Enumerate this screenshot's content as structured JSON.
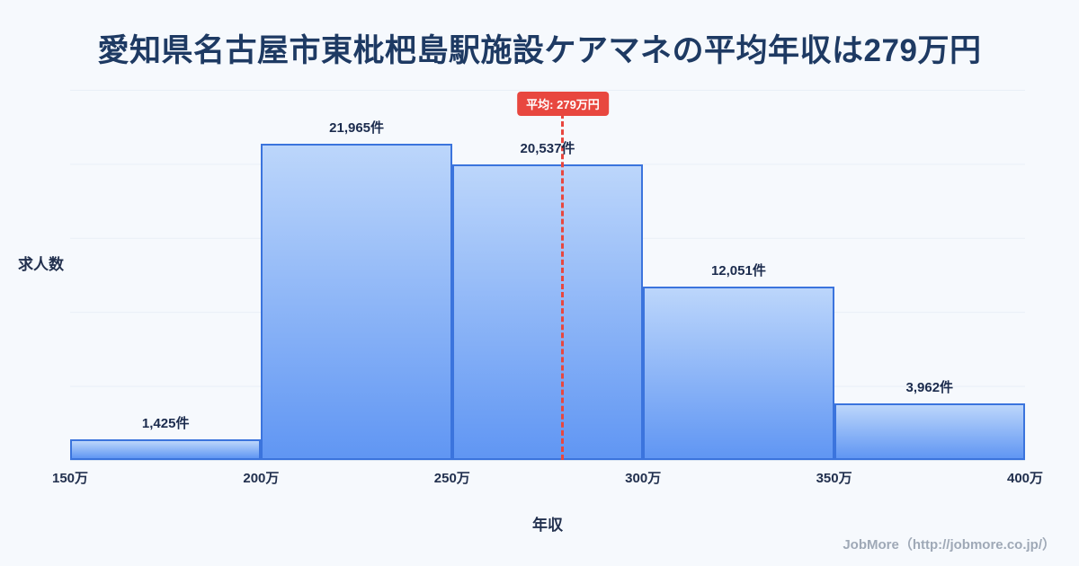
{
  "page": {
    "footer_credit": "JobMore（http://jobmore.co.jp/）"
  },
  "chart_data": {
    "type": "bar",
    "title": "愛知県名古屋市東枇杷島駅施設ケアマネの平均年収は279万円",
    "xlabel": "年収",
    "ylabel": "求人数",
    "x_range": [
      150,
      400
    ],
    "x_tick_labels": [
      "150万",
      "200万",
      "250万",
      "300万",
      "350万",
      "400万"
    ],
    "x_unit": "万円",
    "ylim": [
      0,
      25700
    ],
    "grid": true,
    "legend": "none",
    "bins": [
      {
        "range": [
          150,
          200
        ],
        "count": 1425,
        "label": "1,425件"
      },
      {
        "range": [
          200,
          250
        ],
        "count": 21965,
        "label": "21,965件"
      },
      {
        "range": [
          250,
          300
        ],
        "count": 20537,
        "label": "20,537件"
      },
      {
        "range": [
          300,
          350
        ],
        "count": 12051,
        "label": "12,051件"
      },
      {
        "range": [
          350,
          400
        ],
        "count": 3962,
        "label": "3,962件"
      }
    ],
    "average": {
      "value": 279,
      "label": "平均: 279万円"
    }
  },
  "colors": {
    "background": "#f6f9fd",
    "title_text": "#1e3a63",
    "bar_fill_top": "#bcd6fb",
    "bar_fill_bottom": "#6096f3",
    "bar_border": "#3b74dd",
    "average_line": "#e8473f",
    "badge_bg": "#e8473f",
    "badge_text": "#ffffff",
    "footer_text": "#9fa9b7"
  }
}
